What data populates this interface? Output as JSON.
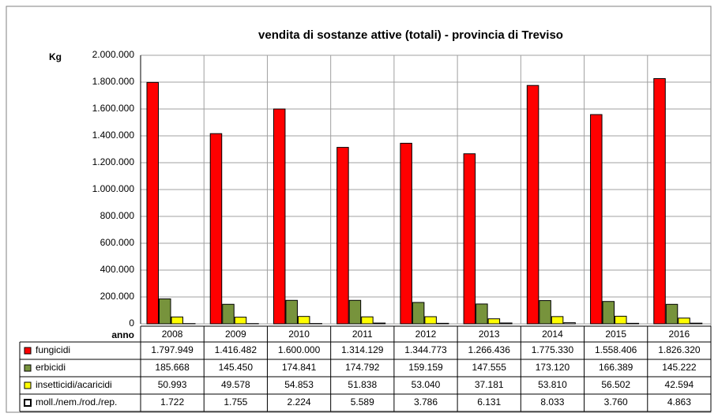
{
  "chart_data": {
    "type": "bar",
    "title": "vendita di sostanze attive (totali) - provincia di Treviso",
    "ylabel": "Kg",
    "xlabel": "anno",
    "categories": [
      "2008",
      "2009",
      "2010",
      "2011",
      "2012",
      "2013",
      "2014",
      "2015",
      "2016"
    ],
    "series": [
      {
        "name": "fungicidi",
        "color": "#ff0000",
        "values": [
          1797949,
          1416482,
          1600000,
          1314129,
          1344773,
          1266436,
          1775330,
          1558406,
          1826320
        ],
        "value_labels": [
          "1.797.949",
          "1.416.482",
          "1.600.000",
          "1.314.129",
          "1.344.773",
          "1.266.436",
          "1.775.330",
          "1.558.406",
          "1.826.320"
        ]
      },
      {
        "name": "erbicidi",
        "color": "#77933c",
        "values": [
          185668,
          145450,
          174841,
          174792,
          159159,
          147555,
          173120,
          166389,
          145222
        ],
        "value_labels": [
          "185.668",
          "145.450",
          "174.841",
          "174.792",
          "159.159",
          "147.555",
          "173.120",
          "166.389",
          "145.222"
        ]
      },
      {
        "name": "insetticidi/acaricidi",
        "color": "#ffff00",
        "values": [
          50993,
          49578,
          54853,
          51838,
          53040,
          37181,
          53810,
          56502,
          42594
        ],
        "value_labels": [
          "50.993",
          "49.578",
          "54.853",
          "51.838",
          "53.040",
          "37.181",
          "53.810",
          "56.502",
          "42.594"
        ]
      },
      {
        "name": "moll./nem./rod./rep.",
        "color": "#ffffff",
        "values": [
          1722,
          1755,
          2224,
          5589,
          3786,
          6131,
          8033,
          3760,
          4863
        ],
        "value_labels": [
          "1.722",
          "1.755",
          "2.224",
          "5.589",
          "3.786",
          "6.131",
          "8.033",
          "3.760",
          "4.863"
        ]
      }
    ],
    "ylim": [
      0,
      2000000
    ],
    "yticks": [
      0,
      {
        "value": 200000,
        "label": "200.000"
      },
      {
        "value": 400000,
        "label": "400.000"
      },
      {
        "value": 600000,
        "label": "600.000"
      },
      {
        "value": 800000,
        "label": "800.000"
      },
      {
        "value": 1000000,
        "label": "1.000.000"
      },
      {
        "value": 1200000,
        "label": "1.200.000"
      },
      {
        "value": 1400000,
        "label": "1.400.000"
      },
      {
        "value": 1600000,
        "label": "1.600.000"
      },
      {
        "value": 1800000,
        "label": "1.800.000"
      },
      {
        "value": 2000000,
        "label": "2.000.000"
      }
    ],
    "grid": true
  }
}
